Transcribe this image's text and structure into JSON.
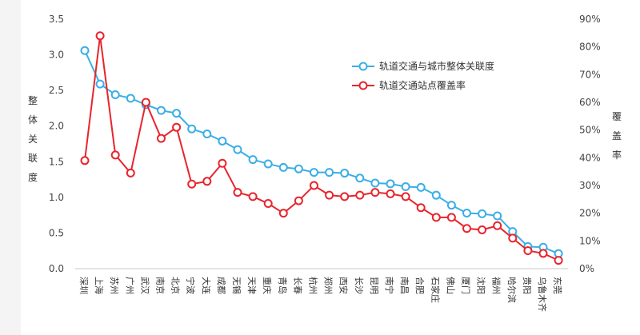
{
  "chart_data": {
    "type": "line",
    "categories": [
      "深圳",
      "上海",
      "苏州",
      "广州",
      "武汉",
      "南京",
      "北京",
      "宁波",
      "大连",
      "成都",
      "无锡",
      "天津",
      "重庆",
      "青岛",
      "长春",
      "杭州",
      "郑州",
      "西安",
      "长沙",
      "昆明",
      "南宁",
      "南昌",
      "合肥",
      "石家庄",
      "佛山",
      "厦门",
      "沈阳",
      "福州",
      "哈尔滨",
      "贵阳",
      "乌鲁木齐",
      "东莞"
    ],
    "series": [
      {
        "name": "轨道交通与城市整体关联度",
        "axis": "left",
        "color": "#3aaee6",
        "values": [
          3.06,
          2.59,
          2.44,
          2.39,
          2.3,
          2.22,
          2.18,
          1.96,
          1.89,
          1.79,
          1.67,
          1.53,
          1.47,
          1.42,
          1.4,
          1.35,
          1.35,
          1.34,
          1.27,
          1.2,
          1.19,
          1.15,
          1.14,
          1.03,
          0.89,
          0.78,
          0.77,
          0.74,
          0.52,
          0.31,
          0.3,
          0.21
        ]
      },
      {
        "name": "轨道交通站点覆盖率",
        "axis": "right",
        "color": "#e8242c",
        "values": [
          0.39,
          0.84,
          0.41,
          0.345,
          0.6,
          0.47,
          0.51,
          0.305,
          0.315,
          0.38,
          0.275,
          0.26,
          0.235,
          0.2,
          0.245,
          0.3,
          0.265,
          0.26,
          0.265,
          0.275,
          0.27,
          0.26,
          0.22,
          0.185,
          0.185,
          0.145,
          0.14,
          0.155,
          0.11,
          0.065,
          0.055,
          0.03
        ]
      }
    ],
    "y_left": {
      "label": "整体关联度",
      "ylim": [
        0,
        3.5
      ],
      "ticks": [
        "0.0",
        "0.5",
        "1.0",
        "1.5",
        "2.0",
        "2.5",
        "3.0",
        "3.5"
      ]
    },
    "y_right": {
      "label": "覆盖率",
      "ylim": [
        0,
        0.9
      ],
      "ticks": [
        "0%",
        "10%",
        "20%",
        "30%",
        "40%",
        "50%",
        "60%",
        "70%",
        "80%",
        "90%"
      ]
    },
    "legend_position": "top-right",
    "grid": false
  }
}
